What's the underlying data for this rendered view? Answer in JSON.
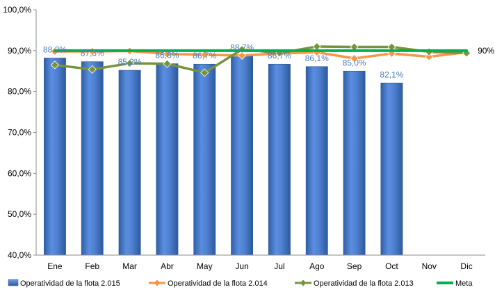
{
  "chart_data": {
    "type": "bar",
    "title": "",
    "xlabel": "",
    "ylabel": "",
    "categories": [
      "Ene",
      "Feb",
      "Mar",
      "Abr",
      "May",
      "Jun",
      "Jul",
      "Ago",
      "Sep",
      "Oct",
      "Nov",
      "Dic"
    ],
    "ylim": [
      40,
      100
    ],
    "yticks": [
      40,
      50,
      60,
      70,
      80,
      90,
      100
    ],
    "ytick_labels": [
      "40,0%",
      "50,0%",
      "60,0%",
      "70,0%",
      "80,0%",
      "90,0%",
      "100,0%"
    ],
    "grid": false,
    "legend_position": "bottom",
    "series": [
      {
        "name": "Operatividad de la flota 2.015",
        "type": "bar",
        "color": "#4f81d2",
        "values": [
          88.2,
          87.3,
          85.2,
          86.8,
          86.7,
          88.7,
          86.7,
          86.1,
          85.0,
          82.1,
          null,
          null
        ],
        "labels": [
          "88,2%",
          "87,3%",
          "85,2%",
          "86,8%",
          "86,7%",
          "88,7%",
          "86,7%",
          "86,1%",
          "85,0%",
          "82,1%",
          "",
          ""
        ]
      },
      {
        "name": "Operatividad de la flota 2.014",
        "type": "line",
        "color": "#f79646",
        "values": [
          89.8,
          89.8,
          89.9,
          89.2,
          89.0,
          88.8,
          89.3,
          89.6,
          88.1,
          89.3,
          88.5,
          89.6
        ]
      },
      {
        "name": "Operatividad de la flota 2.013",
        "type": "line",
        "color": "#77933c",
        "values": [
          86.5,
          85.4,
          86.9,
          86.8,
          84.6,
          90.3,
          89.4,
          91.0,
          90.9,
          90.9,
          89.7,
          89.4
        ]
      },
      {
        "name": "Meta",
        "type": "line",
        "color": "#00b050",
        "values": [
          90,
          90,
          90,
          90,
          90,
          90,
          90,
          90,
          90,
          90,
          90,
          90
        ],
        "end_label": "90%"
      }
    ]
  }
}
